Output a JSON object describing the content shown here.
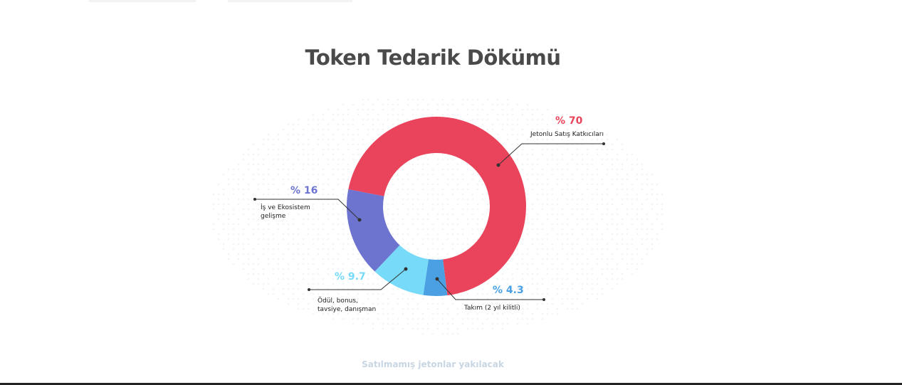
{
  "chart_data": {
    "type": "donut",
    "title": "Token Tedarik Dökümü",
    "categories": [
      "Jetonlu Satış Katkıcıları",
      "Takım (2 yıl kilitli)",
      "Ödül, bonus, tavsiye, danışman",
      "İş ve Ekosistem gelişme"
    ],
    "values": [
      70,
      4.3,
      9.7,
      16
    ],
    "value_labels": [
      "% 70",
      "% 4.3",
      "% 9.7",
      "% 16"
    ],
    "colors": [
      "#e9445b",
      "#4aa0e2",
      "#76daf8",
      "#6c74cf"
    ],
    "note": "Satılmamış jetonlar yakılacak"
  }
}
